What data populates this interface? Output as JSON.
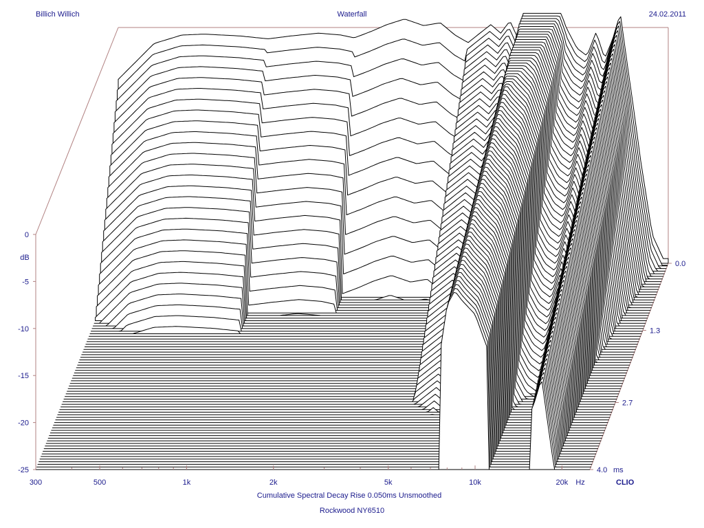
{
  "header": {
    "left": "Billich Willich",
    "center": "Waterfall",
    "right": "24.02.2011"
  },
  "footer": {
    "line1": "Cumulative Spectral Decay   Rise 0.050ms   Unsmoothed",
    "line2": "Rockwood NY6510"
  },
  "colors": {
    "text": "#1a1a8c",
    "frame": "#b08080",
    "trace": "#000000",
    "fill": "#ffffff"
  },
  "chart_data": {
    "type": "waterfall",
    "title": "Waterfall",
    "xlabel": "Hz",
    "ylabel": "dB",
    "zlabel": "ms",
    "xscale": "log",
    "xlim": [
      300,
      25000
    ],
    "ylim": [
      -25,
      0
    ],
    "zlim": [
      0,
      4.0
    ],
    "x_ticks": [
      {
        "value": 300,
        "label": "300"
      },
      {
        "value": 500,
        "label": "500"
      },
      {
        "value": 1000,
        "label": "1k"
      },
      {
        "value": 2000,
        "label": "2k"
      },
      {
        "value": 5000,
        "label": "5k"
      },
      {
        "value": 10000,
        "label": "10k"
      },
      {
        "value": 20000,
        "label": "20k"
      }
    ],
    "x_unit": "Hz",
    "y_ticks": [
      {
        "value": 0,
        "label": "0"
      },
      {
        "value": -5,
        "label": "-5"
      },
      {
        "value": -10,
        "label": "-10"
      },
      {
        "value": -15,
        "label": "-15"
      },
      {
        "value": -20,
        "label": "-20"
      },
      {
        "value": -25,
        "label": "-25"
      }
    ],
    "z_ticks": [
      {
        "value": 0.0,
        "label": "0.0"
      },
      {
        "value": 1.3,
        "label": "1.3"
      },
      {
        "value": 2.7,
        "label": "2.7"
      },
      {
        "value": 4.0,
        "label": "4.0"
      }
    ],
    "z_unit": "ms",
    "brand": "CLIO",
    "anchor_response_db": [
      [
        300,
        -5.5
      ],
      [
        400,
        -1.7
      ],
      [
        500,
        -0.8
      ],
      [
        600,
        -0.7
      ],
      [
        800,
        -0.9
      ],
      [
        1000,
        -1.2
      ],
      [
        1200,
        -0.9
      ],
      [
        1500,
        -0.6
      ],
      [
        1800,
        -0.8
      ],
      [
        2000,
        -1.1
      ],
      [
        2300,
        -0.4
      ],
      [
        2600,
        0.3
      ],
      [
        3000,
        0.9
      ],
      [
        3500,
        0.2
      ],
      [
        4000,
        0.5
      ],
      [
        4500,
        -0.8
      ],
      [
        5000,
        -1.6
      ],
      [
        5500,
        -0.6
      ],
      [
        6000,
        0.3
      ],
      [
        6500,
        -0.6
      ],
      [
        7000,
        0.7
      ],
      [
        7500,
        -1.3
      ],
      [
        8000,
        4.5
      ],
      [
        8500,
        6.0
      ],
      [
        9000,
        5.0
      ],
      [
        10000,
        3.5
      ],
      [
        11000,
        0.0
      ],
      [
        12000,
        -2.2
      ],
      [
        13000,
        -3.0
      ],
      [
        14000,
        -0.5
      ],
      [
        15000,
        -3.3
      ],
      [
        16000,
        -1.2
      ],
      [
        17000,
        1.5
      ],
      [
        18000,
        -4.0
      ],
      [
        19000,
        -9.0
      ],
      [
        20000,
        -14.0
      ],
      [
        22000,
        -22.0
      ],
      [
        24000,
        -24.5
      ]
    ],
    "decay_profile": [
      {
        "f_max": 1000,
        "tau_ms": 0.25
      },
      {
        "f_max": 2000,
        "tau_ms": 0.18
      },
      {
        "f_max": 5000,
        "tau_ms": 0.12
      },
      {
        "f_max": 25000,
        "tau_ms": 0.5
      }
    ],
    "slice_count": 80
  }
}
